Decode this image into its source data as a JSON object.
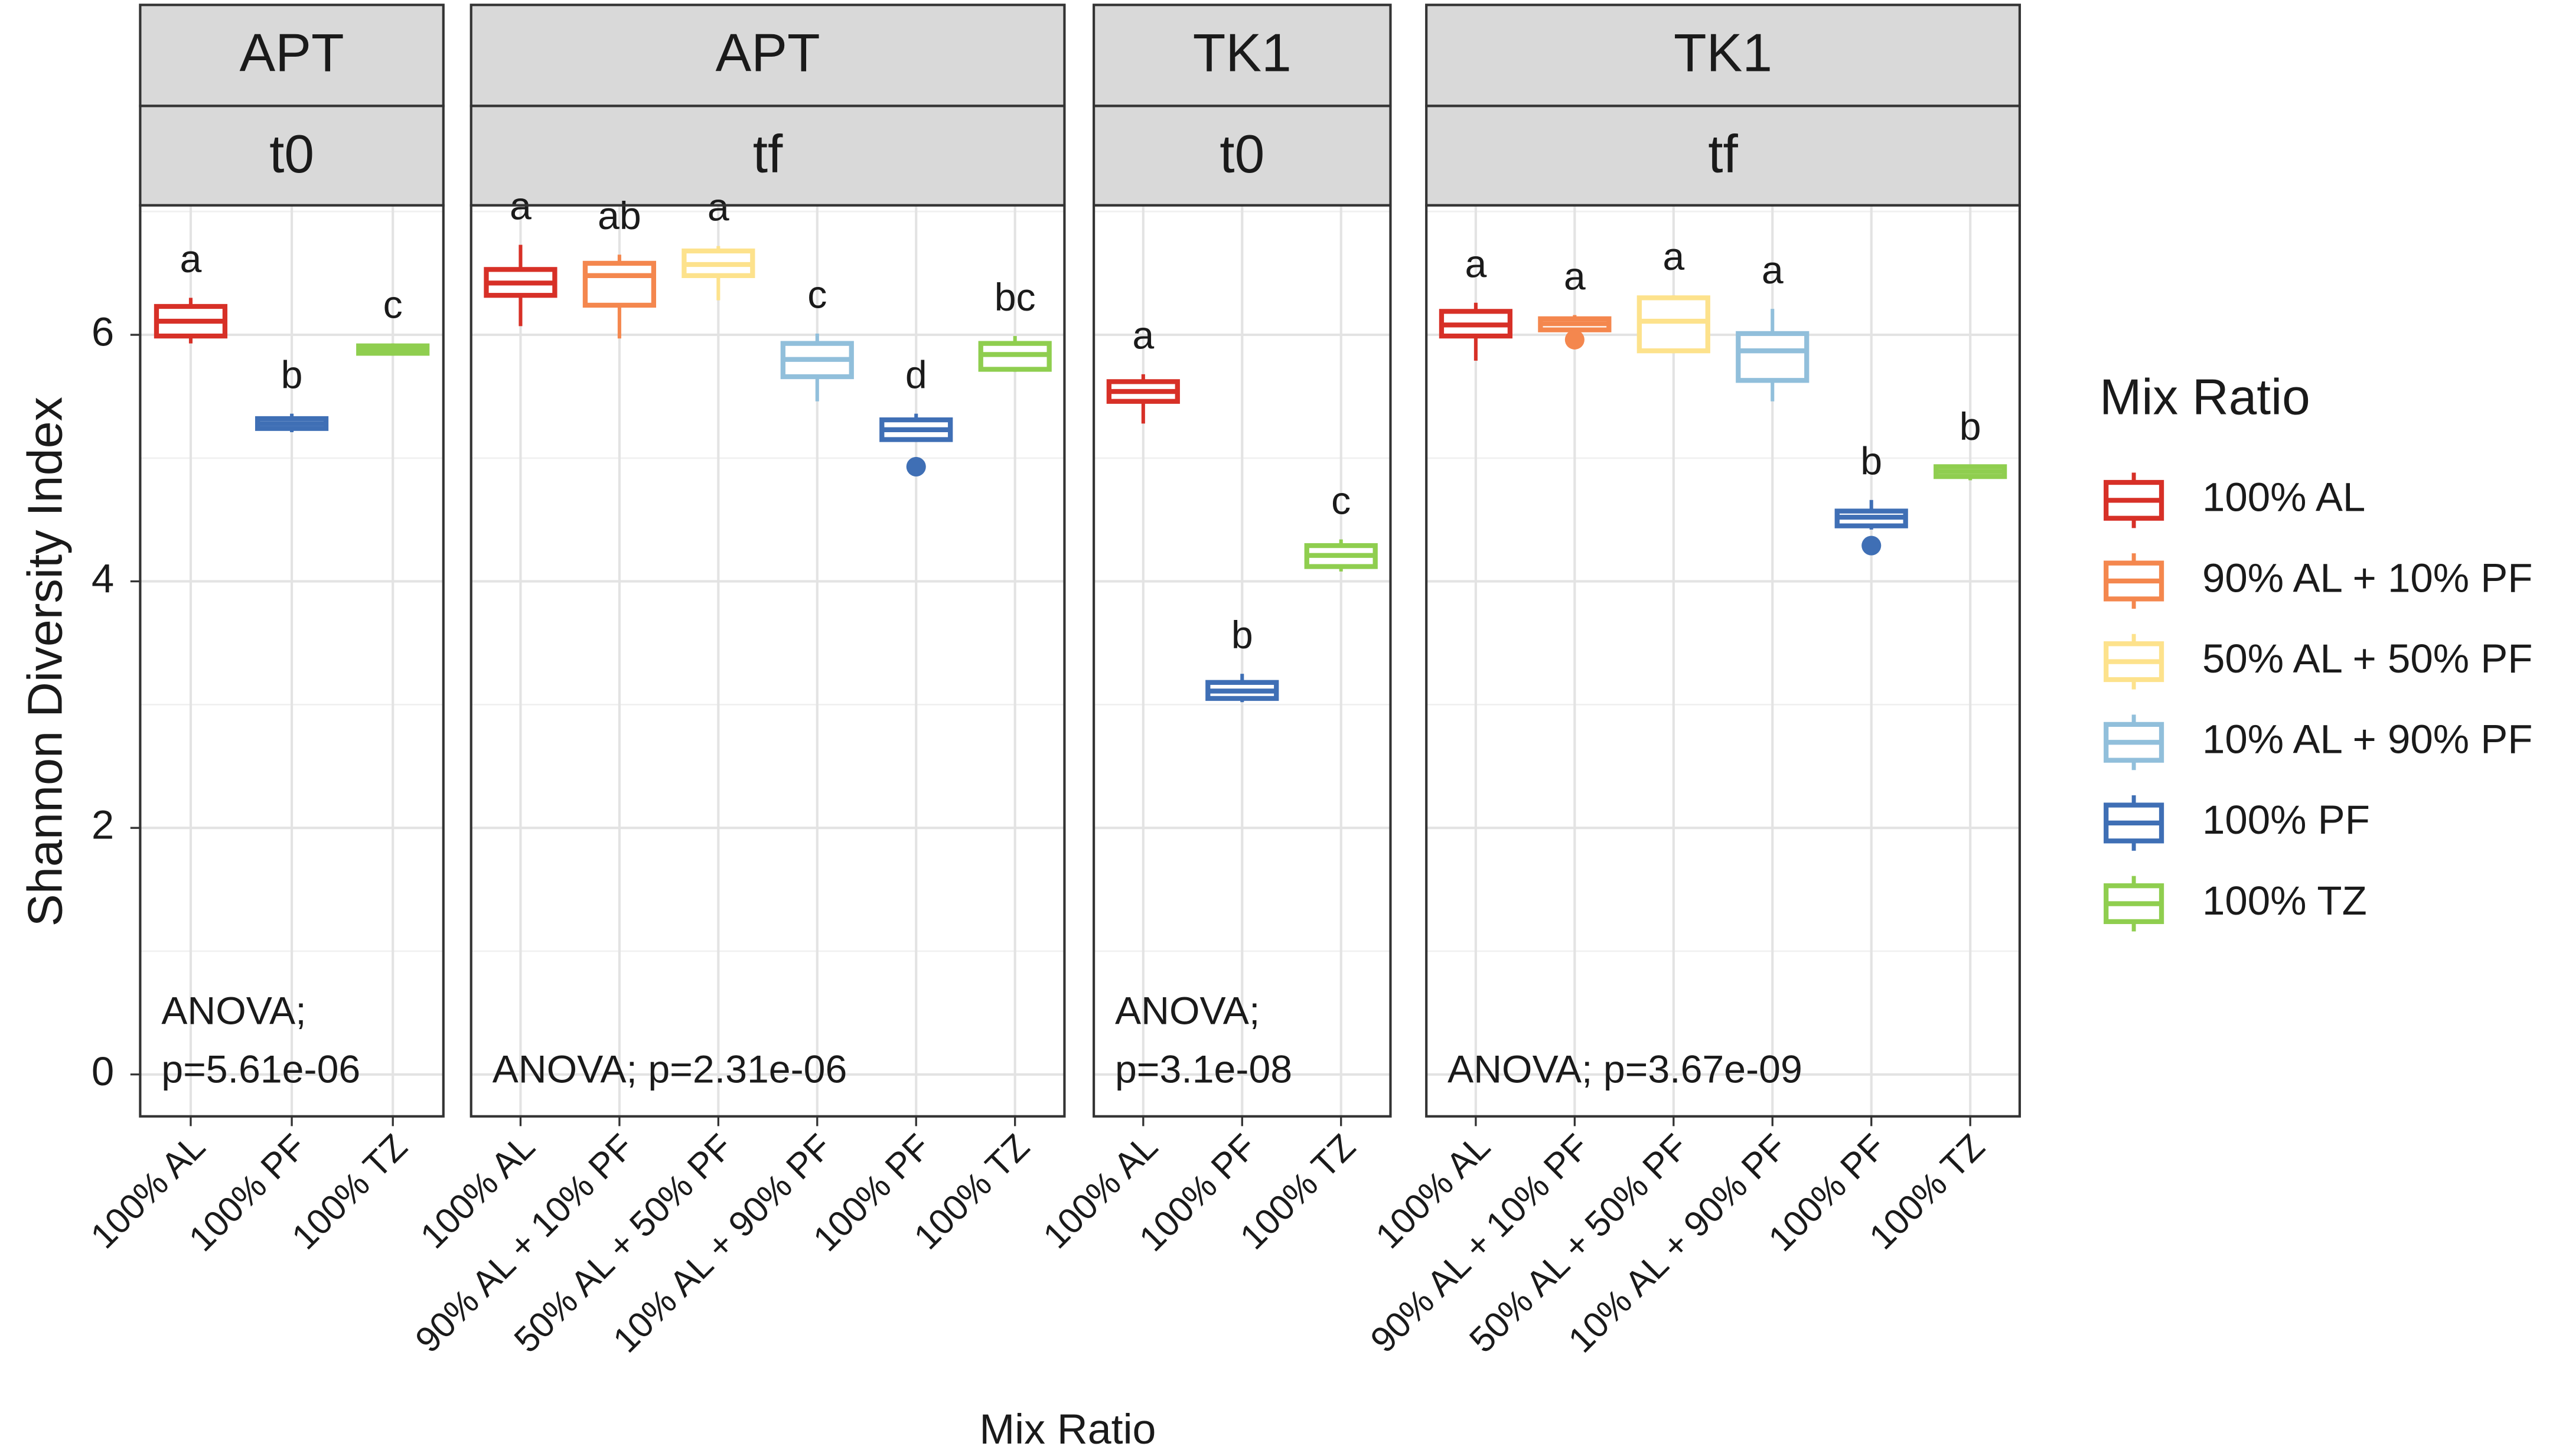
{
  "chart_data": [
    {
      "type": "box",
      "facet": [
        "APT",
        "t0"
      ],
      "categories": [
        "100% AL",
        "100% PF",
        "100% TZ"
      ],
      "boxes": [
        {
          "min": 5.93,
          "q1": 5.99,
          "median": 6.11,
          "q3": 6.23,
          "max": 6.3,
          "outliers": [],
          "label": "a"
        },
        {
          "min": 5.21,
          "q1": 5.24,
          "median": 5.28,
          "q3": 5.32,
          "max": 5.36,
          "outliers": [],
          "label": "b"
        },
        {
          "min": 5.83,
          "q1": 5.85,
          "median": 5.88,
          "q3": 5.91,
          "max": 5.93,
          "outliers": [],
          "label": "c"
        }
      ],
      "annotation": [
        "ANOVA;",
        "p=5.61e-06"
      ]
    },
    {
      "type": "box",
      "facet": [
        "APT",
        "tf"
      ],
      "categories": [
        "100% AL",
        "90% AL + 10% PF",
        "50% AL + 50% PF",
        "10% AL + 90% PF",
        "100% PF",
        "100% TZ"
      ],
      "boxes": [
        {
          "min": 6.07,
          "q1": 6.32,
          "median": 6.42,
          "q3": 6.53,
          "max": 6.73,
          "outliers": [],
          "label": "a"
        },
        {
          "min": 5.97,
          "q1": 6.24,
          "median": 6.48,
          "q3": 6.58,
          "max": 6.65,
          "outliers": [],
          "label": "ab"
        },
        {
          "min": 6.28,
          "q1": 6.48,
          "median": 6.57,
          "q3": 6.68,
          "max": 6.72,
          "outliers": [],
          "label": "a"
        },
        {
          "min": 5.46,
          "q1": 5.66,
          "median": 5.8,
          "q3": 5.93,
          "max": 6.01,
          "outliers": [],
          "label": "c"
        },
        {
          "min": 5.15,
          "q1": 5.15,
          "median": 5.23,
          "q3": 5.31,
          "max": 5.36,
          "outliers": [
            4.93
          ],
          "label": "d"
        },
        {
          "min": 5.7,
          "q1": 5.72,
          "median": 5.84,
          "q3": 5.93,
          "max": 5.99,
          "outliers": [],
          "label": "bc"
        }
      ],
      "annotation": [
        "ANOVA; p=2.31e-06"
      ]
    },
    {
      "type": "box",
      "facet": [
        "TK1",
        "t0"
      ],
      "categories": [
        "100% AL",
        "100% PF",
        "100% TZ"
      ],
      "boxes": [
        {
          "min": 5.28,
          "q1": 5.46,
          "median": 5.54,
          "q3": 5.62,
          "max": 5.68,
          "outliers": [],
          "label": "a"
        },
        {
          "min": 3.02,
          "q1": 3.05,
          "median": 3.11,
          "q3": 3.18,
          "max": 3.25,
          "outliers": [],
          "label": "b"
        },
        {
          "min": 4.08,
          "q1": 4.12,
          "median": 4.21,
          "q3": 4.29,
          "max": 4.34,
          "outliers": [],
          "label": "c"
        }
      ],
      "annotation": [
        "ANOVA;",
        "p=3.1e-08"
      ]
    },
    {
      "type": "box",
      "facet": [
        "TK1",
        "tf"
      ],
      "categories": [
        "100% AL",
        "90% AL + 10% PF",
        "50% AL + 50% PF",
        "10% AL + 90% PF",
        "100% PF",
        "100% TZ"
      ],
      "boxes": [
        {
          "min": 5.79,
          "q1": 5.99,
          "median": 6.08,
          "q3": 6.19,
          "max": 6.26,
          "outliers": [],
          "label": "a"
        },
        {
          "min": 6.0,
          "q1": 6.04,
          "median": 6.09,
          "q3": 6.13,
          "max": 6.16,
          "outliers": [
            5.96
          ],
          "label": "a"
        },
        {
          "min": 5.85,
          "q1": 5.87,
          "median": 6.11,
          "q3": 6.3,
          "max": 6.32,
          "outliers": [],
          "label": "a"
        },
        {
          "min": 5.46,
          "q1": 5.63,
          "median": 5.87,
          "q3": 6.01,
          "max": 6.21,
          "outliers": [],
          "label": "a"
        },
        {
          "min": 4.42,
          "q1": 4.45,
          "median": 4.52,
          "q3": 4.57,
          "max": 4.66,
          "outliers": [
            4.29
          ],
          "label": "b"
        },
        {
          "min": 4.82,
          "q1": 4.85,
          "median": 4.89,
          "q3": 4.93,
          "max": 4.94,
          "outliers": [],
          "label": "b"
        }
      ],
      "annotation": [
        "ANOVA; p=3.67e-09"
      ]
    }
  ],
  "axis": {
    "y_label": "Shannon Diversity Index",
    "x_label": "Mix Ratio",
    "ylim": [
      -0.34,
      7.05
    ],
    "yticks": [
      0,
      2,
      4,
      6
    ],
    "minor_yticks": [
      1,
      3,
      5,
      7
    ],
    "grid": true
  },
  "legend": {
    "title": "Mix Ratio",
    "entries": [
      {
        "name": "100% AL",
        "color": "#d73027"
      },
      {
        "name": "90% AL + 10% PF",
        "color": "#f4874e"
      },
      {
        "name": "50% AL + 50% PF",
        "color": "#fde28c"
      },
      {
        "name": "10% AL + 90% PF",
        "color": "#91bfdb"
      },
      {
        "name": "100% PF",
        "color": "#3f6fb5"
      },
      {
        "name": "100% TZ",
        "color": "#8fce4f"
      }
    ]
  }
}
